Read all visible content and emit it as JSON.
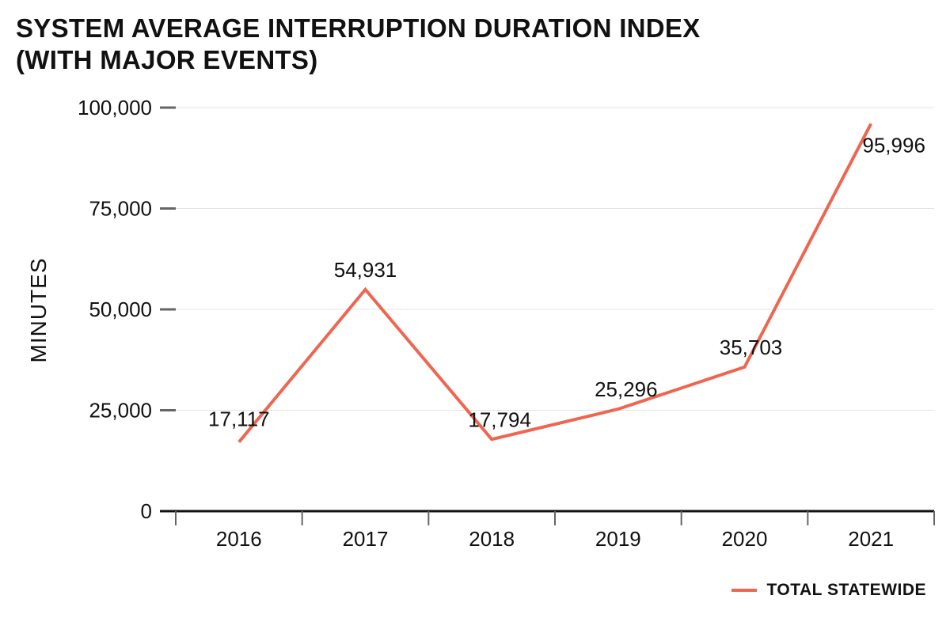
{
  "chart_data": {
    "type": "line",
    "title": "SYSTEM AVERAGE INTERRUPTION DURATION INDEX\n(WITH MAJOR EVENTS)",
    "title_lines": [
      "SYSTEM AVERAGE INTERRUPTION DURATION INDEX",
      "(WITH MAJOR EVENTS)"
    ],
    "xlabel": "",
    "ylabel": "MINUTES",
    "categories": [
      "2016",
      "2017",
      "2018",
      "2019",
      "2020",
      "2021"
    ],
    "series": [
      {
        "name": "TOTAL STATEWIDE",
        "color": "#ee6650",
        "values": [
          17117,
          54931,
          17794,
          25296,
          35703,
          95996
        ],
        "labels": [
          "17,117",
          "54,931",
          "17,794",
          "25,296",
          "35,703",
          "95,996"
        ]
      }
    ],
    "ylim": [
      0,
      100000
    ],
    "yticks": [
      0,
      25000,
      50000,
      75000,
      100000
    ],
    "ytick_labels": [
      "0",
      "25,000",
      "50,000",
      "75,000",
      "100,000"
    ],
    "grid": true,
    "legend_position": "bottom-right"
  }
}
